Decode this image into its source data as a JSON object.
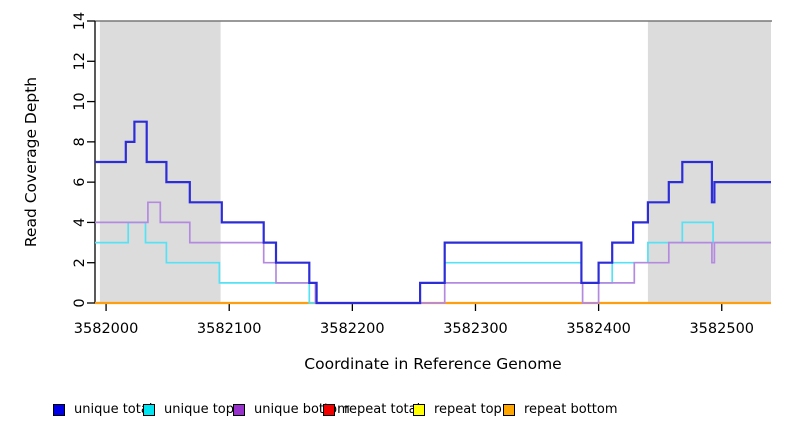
{
  "chart_data": {
    "type": "line",
    "subtype": "step-coverage",
    "title": "",
    "xlabel": "Coordinate in Reference Genome",
    "ylabel": "Read Coverage Depth",
    "xlim": [
      3581991,
      3582540
    ],
    "ylim": [
      0,
      14
    ],
    "x_ticks": [
      3582000,
      3582100,
      3582200,
      3582300,
      3582400,
      3582500
    ],
    "y_ticks": [
      0,
      2,
      4,
      6,
      8,
      10,
      12,
      14
    ],
    "grid": false,
    "legend_position": "bottom",
    "frame_top_color": "#787878",
    "shade_color": "#DCDCDC",
    "shaded_regions": [
      {
        "from": 3581995,
        "to": 3582093
      },
      {
        "from": 3582440,
        "to": 3582540
      }
    ],
    "series": [
      {
        "key": "repeat-total",
        "name": "repeat total",
        "color": "#E60000",
        "width": 1.5,
        "steps": [
          [
            3581991,
            0
          ]
        ]
      },
      {
        "key": "repeat-top",
        "name": "repeat top",
        "color": "#FFFF00",
        "width": 1.5,
        "steps": [
          [
            3581991,
            0
          ]
        ]
      },
      {
        "key": "repeat-bottom",
        "name": "repeat bottom",
        "color": "#FF9E10",
        "width": 2.2,
        "steps": [
          [
            3581991,
            0
          ]
        ]
      },
      {
        "key": "unique-top",
        "name": "unique top",
        "color": "#55E2F5",
        "width": 1.7,
        "steps": [
          [
            3581991,
            3
          ],
          [
            3582018,
            4
          ],
          [
            3582032,
            3
          ],
          [
            3582049,
            2
          ],
          [
            3582092,
            1
          ],
          [
            3582165,
            0
          ],
          [
            3582255,
            1
          ],
          [
            3582275,
            2
          ],
          [
            3582386,
            1
          ],
          [
            3582411,
            2
          ],
          [
            3582440,
            3
          ],
          [
            3582468,
            4
          ],
          [
            3582493,
            3
          ]
        ]
      },
      {
        "key": "unique-bottom",
        "name": "unique bottom",
        "color": "#B48AE0",
        "width": 1.7,
        "steps": [
          [
            3581991,
            4
          ],
          [
            3582034,
            5
          ],
          [
            3582044,
            4
          ],
          [
            3582068,
            3
          ],
          [
            3582128,
            2
          ],
          [
            3582138,
            1
          ],
          [
            3582170,
            0
          ],
          [
            3582275,
            1
          ],
          [
            3582387,
            0
          ],
          [
            3582400,
            1
          ],
          [
            3582429,
            2
          ],
          [
            3582457,
            3
          ],
          [
            3582492,
            2
          ],
          [
            3582494,
            3
          ]
        ]
      },
      {
        "key": "unique-total",
        "name": "unique total",
        "color": "#2D2DD8",
        "width": 2.2,
        "steps": [
          [
            3581991,
            7
          ],
          [
            3582016,
            8
          ],
          [
            3582023,
            9
          ],
          [
            3582033,
            7
          ],
          [
            3582049,
            6
          ],
          [
            3582068,
            5
          ],
          [
            3582094,
            4
          ],
          [
            3582128,
            3
          ],
          [
            3582138,
            2
          ],
          [
            3582165,
            1
          ],
          [
            3582171,
            0
          ],
          [
            3582255,
            1
          ],
          [
            3582275,
            3
          ],
          [
            3582386,
            1
          ],
          [
            3582400,
            2
          ],
          [
            3582411,
            3
          ],
          [
            3582428,
            4
          ],
          [
            3582440,
            5
          ],
          [
            3582457,
            6
          ],
          [
            3582468,
            7
          ],
          [
            3582492,
            5
          ],
          [
            3582494,
            6
          ]
        ]
      }
    ],
    "legend": [
      {
        "label": "unique total",
        "color": "#0000E6"
      },
      {
        "label": "unique top",
        "color": "#00E5F2"
      },
      {
        "label": "unique bottom",
        "color": "#9932CC"
      },
      {
        "label": "repeat total",
        "color": "#F20000"
      },
      {
        "label": "repeat top",
        "color": "#FFFF00"
      },
      {
        "label": "repeat bottom",
        "color": "#FFA500"
      }
    ]
  }
}
